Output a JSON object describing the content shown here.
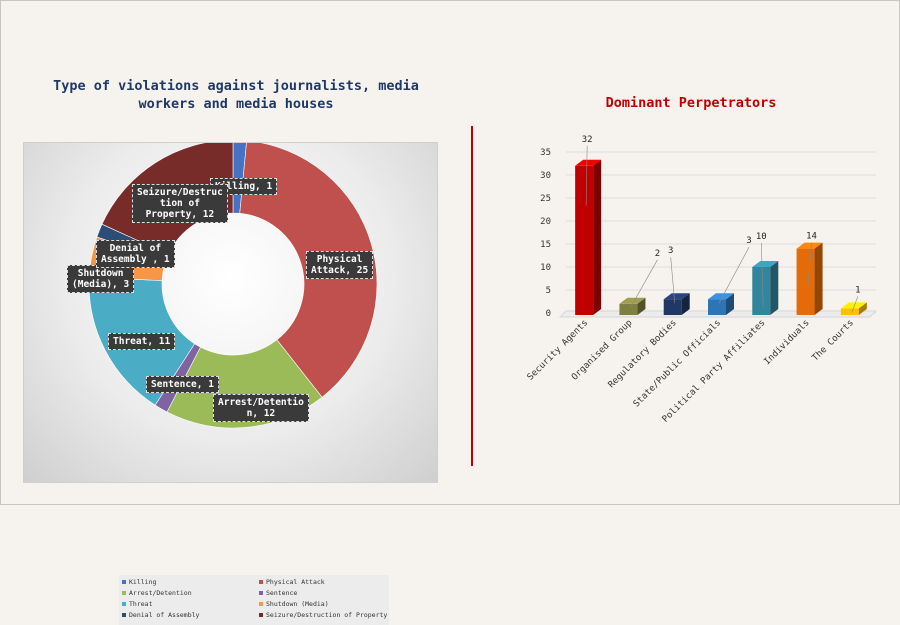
{
  "charts": {
    "left_title": "Type of violations against journalists, media workers and media houses",
    "right_title": "Dominant Perpetrators"
  },
  "chart_data": [
    {
      "type": "donut",
      "title": "Type of violations against journalists, media workers and media houses",
      "categories": [
        "Killing",
        "Physical Attack",
        "Arrest/Detention",
        "Sentence",
        "Threat",
        "Shutdown (Media)",
        "Denial of Assembly",
        "Seizure/Destruction of Property"
      ],
      "values": [
        1,
        25,
        12,
        1,
        11,
        3,
        1,
        12
      ],
      "data_labels": [
        "Killing, 1",
        "Physical Attack, 25",
        "Arrest/Detentio n, 12",
        "Sentence, 1",
        "Threat, 11",
        "Shutdown (Media), 3",
        "Denial of Assembly , 1",
        "Seizure/Destruc tion of Property, 12"
      ],
      "colors": [
        "#4472c4",
        "#c0504d",
        "#9bbb59",
        "#8064a2",
        "#4bacc6",
        "#f79646",
        "#2c4d75",
        "#772c2a"
      ],
      "legend": "bottom"
    },
    {
      "type": "bar",
      "title": "Dominant Perpetrators",
      "categories": [
        "Security Agents",
        "Organised Group",
        "Regulatory Bodies",
        "State/Public Officials",
        "Political Party Affiliates",
        "Individuals",
        "The Courts"
      ],
      "values": [
        32,
        2,
        3,
        3,
        10,
        14,
        1
      ],
      "colors": [
        "#c00000",
        "#7f7f3f",
        "#1f3864",
        "#2e75b6",
        "#31859c",
        "#e36c09",
        "#ffc000"
      ],
      "ylim": [
        0,
        35
      ],
      "yticks": [
        0,
        5,
        10,
        15,
        20,
        25,
        30,
        35
      ],
      "grid": true,
      "three_d": true
    }
  ]
}
